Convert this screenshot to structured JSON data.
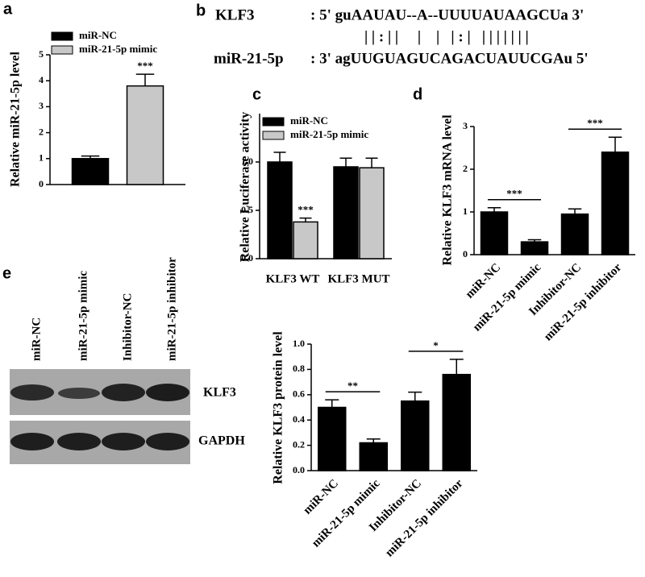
{
  "chart_data": [
    {
      "type": "bar",
      "label": "a",
      "ylabel": "Relative miR-21-5p level",
      "categories": [
        null
      ],
      "series": [
        {
          "name": "miR-NC",
          "color": "#000000",
          "values": [
            1.0
          ],
          "errors": [
            0.1
          ]
        },
        {
          "name": "miR-21-5p mimic",
          "color": "#c8c8c8",
          "values": [
            3.8
          ],
          "errors": [
            0.45
          ]
        }
      ],
      "ylim": [
        0,
        5
      ],
      "yticks": [
        0,
        1,
        2,
        3,
        4,
        5
      ],
      "legend": "top-left",
      "annotations": [
        {
          "text": "***",
          "series": "miR-21-5p mimic"
        }
      ]
    },
    {
      "type": "bar",
      "label": "c",
      "ylabel": "Relative Luciferase activity",
      "categories": [
        "KLF3 WT",
        "KLF3 MUT"
      ],
      "series": [
        {
          "name": "miR-NC",
          "color": "#000000",
          "values": [
            1.0,
            0.95
          ],
          "errors": [
            0.1,
            0.09
          ]
        },
        {
          "name": "miR-21-5p mimic",
          "color": "#c8c8c8",
          "values": [
            0.38,
            0.94
          ],
          "errors": [
            0.04,
            0.1
          ]
        }
      ],
      "ylim": [
        0,
        1.5
      ],
      "yticks": [
        {
          "value": 0,
          "label": "0.0"
        },
        0.5,
        {
          "value": 1,
          "label": "1.0"
        }
      ],
      "legend": "top-left",
      "annotations": [
        {
          "text": "***",
          "series": "miR-21-5p mimic",
          "category": "KLF3 WT"
        }
      ]
    },
    {
      "type": "bar",
      "label": "d",
      "ylabel": "Relative KLF3 mRNA level",
      "categories": [
        "miR-NC",
        "miR-21-5p mimic",
        "Inhibitor-NC",
        "miR-21-5p inhibitor"
      ],
      "values": [
        1.0,
        0.3,
        0.95,
        2.4
      ],
      "errors": [
        0.1,
        0.05,
        0.12,
        0.35
      ],
      "color": "#000000",
      "ylim": [
        0,
        3
      ],
      "yticks": [
        0,
        1,
        2,
        3
      ],
      "xlabel_rotation": 45,
      "annotations": [
        {
          "text": "***",
          "from": "miR-NC",
          "to": "miR-21-5p mimic"
        },
        {
          "text": "***",
          "from": "Inhibitor-NC",
          "to": "miR-21-5p inhibitor"
        }
      ]
    },
    {
      "type": "bar",
      "label": "e",
      "ylabel": "Relative KLF3 protein level",
      "categories": [
        "miR-NC",
        "miR-21-5p mimic",
        "Inhibitor-NC",
        "miR-21-5p inhibitor"
      ],
      "values": [
        0.5,
        0.22,
        0.55,
        0.76
      ],
      "errors": [
        0.06,
        0.03,
        0.07,
        0.12
      ],
      "color": "#000000",
      "ylim": [
        0,
        1
      ],
      "yticks": [
        {
          "value": 0,
          "label": "0.0"
        },
        0.2,
        0.4,
        0.6,
        0.8,
        {
          "value": 1,
          "label": "1.0"
        }
      ],
      "xlabel_rotation": 45,
      "annotations": [
        {
          "text": "**",
          "from": "miR-NC",
          "to": "miR-21-5p mimic"
        },
        {
          "text": "*",
          "from": "Inhibitor-NC",
          "to": "miR-21-5p inhibitor"
        }
      ]
    }
  ],
  "alignment": {
    "label": "b",
    "rows": [
      {
        "name": "KLF3",
        "sequence": ": 5' guAAUAU--A--UUUUAUAAGCUa 3'"
      },
      {
        "pairs": "| | : | |     |    |   | : |   | | | | | | |"
      },
      {
        "name": "miR-21-5p",
        "sequence": ": 3' agUUGUAGUCAGACUAUUCGAu 5'"
      }
    ]
  },
  "blot": {
    "lanes": [
      "miR-NC",
      "miR-21-5p mimic",
      "Inhibitor-NC",
      "miR-21-5p inhibitor"
    ],
    "bands": [
      "KLF3",
      "GAPDH"
    ]
  }
}
